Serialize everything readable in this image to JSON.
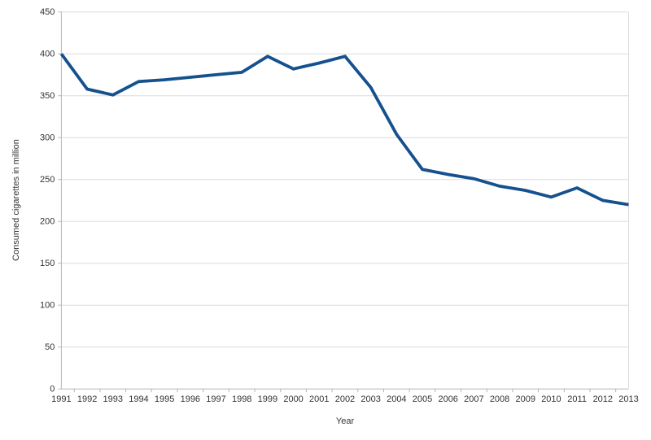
{
  "chart_data": {
    "type": "line",
    "title": "",
    "xlabel": "Year",
    "ylabel": "Consumed cigarettes in million",
    "categories": [
      "1991",
      "1992",
      "1993",
      "1994",
      "1995",
      "1996",
      "1997",
      "1998",
      "1999",
      "2000",
      "2001",
      "2002",
      "2003",
      "2004",
      "2005",
      "2006",
      "2007",
      "2008",
      "2009",
      "2010",
      "2011",
      "2012",
      "2013"
    ],
    "series": [
      {
        "name": "Consumed cigarettes",
        "values": [
          400,
          358,
          351,
          367,
          369,
          372,
          375,
          378,
          397,
          382,
          389,
          397,
          360,
          304,
          262,
          256,
          251,
          242,
          237,
          229,
          240,
          225,
          220
        ]
      }
    ],
    "ylim": [
      0,
      450
    ],
    "ytick_step": 50,
    "grid": "horizontal",
    "legend": "none",
    "colors": {
      "line": "#14518e",
      "grid": "#dcdcdc",
      "axis": "#b5b5b5",
      "label": "#333333",
      "background": "#ffffff"
    }
  }
}
